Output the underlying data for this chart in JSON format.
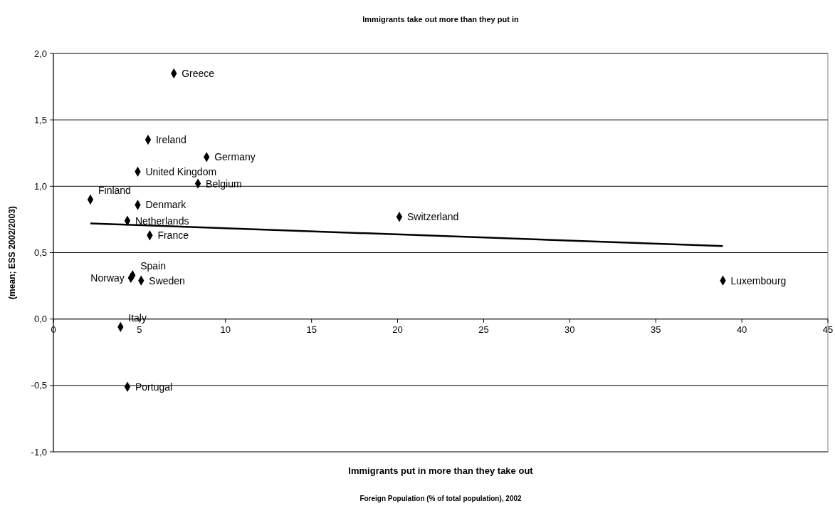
{
  "chart_data": {
    "type": "scatter",
    "title": "Immigrants take out more than they put in",
    "ylabel": "(mean; ESS 2002/2003)",
    "annotations": [
      "Immigrants put in more than they take out",
      "Foreign Population (% of total population), 2002",
      {
        "text": "Greece",
        "x": 7.0,
        "y": 1.85
      },
      {
        "text": "Ireland",
        "x": 5.5,
        "y": 1.35
      },
      {
        "text": "Germany",
        "x": 8.9,
        "y": 1.22
      },
      {
        "text": "United Kingdom",
        "x": 4.9,
        "y": 1.11
      },
      {
        "text": "Belgium",
        "x": 8.4,
        "y": 1.02
      },
      {
        "text": "Finland",
        "x": 2.15,
        "y": 0.9
      },
      {
        "text": "Denmark",
        "x": 4.9,
        "y": 0.86
      },
      {
        "text": "Netherlands",
        "x": 4.3,
        "y": 0.74
      },
      {
        "text": "France",
        "x": 5.6,
        "y": 0.63
      },
      {
        "text": "Spain",
        "x": 4.6,
        "y": 0.33
      },
      {
        "text": "Norway",
        "x": 4.5,
        "y": 0.31
      },
      {
        "text": "Sweden",
        "x": 5.1,
        "y": 0.29
      },
      {
        "text": "Switzerland",
        "x": 20.1,
        "y": 0.77
      },
      {
        "text": "Luxembourg",
        "x": 38.9,
        "y": 0.29
      },
      {
        "text": "Italy",
        "x": 3.9,
        "y": -0.06
      },
      {
        "text": "Portugal",
        "x": 4.3,
        "y": -0.51
      }
    ],
    "series": [
      {
        "type": "scatter",
        "color": "#000000",
        "marker": "diamond",
        "x": [
          7.0,
          5.5,
          8.9,
          4.9,
          8.4,
          2.15,
          4.9,
          4.3,
          5.6,
          4.6,
          4.5,
          5.1,
          20.1,
          38.9,
          3.9,
          4.3
        ],
        "values": [
          1.85,
          1.35,
          1.22,
          1.11,
          1.02,
          0.9,
          0.86,
          0.74,
          0.63,
          0.33,
          0.31,
          0.29,
          0.77,
          0.29,
          -0.06,
          -0.51
        ]
      },
      {
        "type": "line",
        "color": "#000000",
        "marker": "none",
        "x": [
          2.15,
          38.9
        ],
        "values": [
          0.72,
          0.55
        ]
      }
    ],
    "xlim": [
      0,
      45
    ],
    "xticks": [
      0,
      5,
      10,
      15,
      20,
      25,
      30,
      35,
      40,
      45
    ],
    "ylim": [
      -1,
      2
    ],
    "yticks": [
      {
        "value": -1,
        "label": "-1,0"
      },
      {
        "value": -0.5,
        "label": "-0,5"
      },
      {
        "value": 0,
        "label": "0,0"
      },
      {
        "value": 0.5,
        "label": "0,5"
      },
      {
        "value": 1,
        "label": "1,0"
      },
      {
        "value": 1.5,
        "label": "1,5"
      },
      {
        "value": 2,
        "label": "2,0"
      }
    ],
    "grid": "y",
    "legend": false
  }
}
